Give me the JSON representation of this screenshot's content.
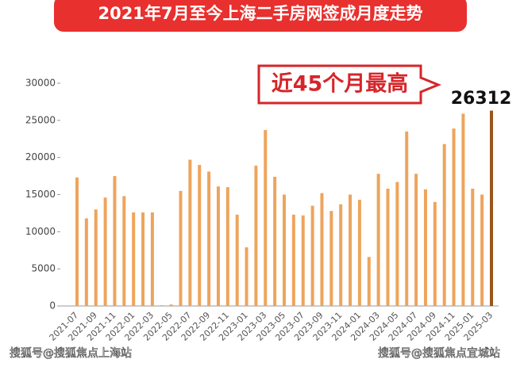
{
  "chart_data": {
    "type": "bar",
    "title": "2021年7月至今上海二手房网签成月度走势",
    "annotation": "近45个月最高",
    "peak_label": "26312",
    "watermarks": [
      "搜狐号@搜狐焦点上海站",
      "搜狐号@搜狐焦点宜城站"
    ],
    "categories": [
      "2021-07",
      null,
      "2021-09",
      null,
      "2021-11",
      null,
      "2022-01",
      null,
      "2022-03",
      null,
      "2022-05",
      null,
      "2022-07",
      null,
      "2022-09",
      null,
      "2022-11",
      null,
      "2023-01",
      null,
      "2023-03",
      null,
      "2023-05",
      null,
      "2023-07",
      null,
      "2023-09",
      null,
      "2023-11",
      null,
      "2024-01",
      null,
      "2024-03",
      null,
      "2024-05",
      null,
      "2024-07",
      null,
      "2024-09",
      null,
      "2024-11",
      null,
      "2025-01",
      null,
      "2025-03"
    ],
    "values": [
      17300,
      11800,
      13000,
      14600,
      17500,
      14800,
      12600,
      12600,
      12600,
      100,
      200,
      15500,
      19700,
      19000,
      18100,
      16100,
      16000,
      12300,
      7900,
      18900,
      23700,
      17400,
      15000,
      12300,
      12200,
      13500,
      15200,
      12800,
      13700,
      15000,
      14300,
      6600,
      17800,
      15800,
      16700,
      23500,
      17800,
      15700,
      14000,
      21800,
      23900,
      25900,
      15800,
      15000,
      26312
    ],
    "color": "#eea45c",
    "highlight_color": "#9a571c",
    "ylim": [
      0,
      30000
    ],
    "yticks": [
      0,
      5000,
      10000,
      15000,
      20000,
      25000,
      30000
    ]
  }
}
